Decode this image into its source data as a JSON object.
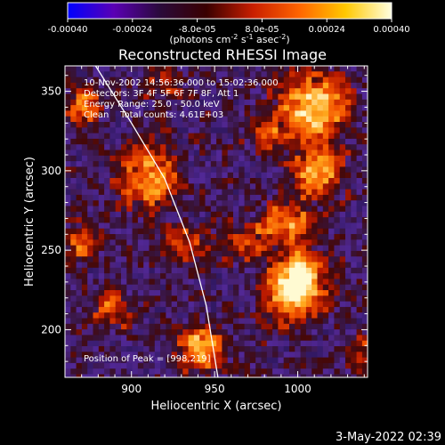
{
  "chart_data": {
    "type": "heatmap",
    "title": "Reconstructed RHESSI Image",
    "xlabel": "Heliocentric X (arcsec)",
    "ylabel": "Heliocentric Y (arcsec)",
    "xlim": [
      860,
      1042
    ],
    "ylim": [
      170,
      366
    ],
    "xticks": [
      900,
      950,
      1000
    ],
    "yticks": [
      200,
      250,
      300,
      350
    ],
    "annotations": [
      "10-Nov-2002 14:56:36.000 to 15:02:36.000",
      "Detectors: 3F 4F 5F 6F 7F 8F, Att 1",
      "Energy Range: 25.0 - 50.0 keV",
      "Clean    Total counts: 4.61E+03"
    ],
    "peak_label": "Position of Peak = [998,219]",
    "peak_position": [
      998,
      219
    ],
    "colorbar": {
      "ticks": [
        "-0.00040",
        "-0.00024",
        "-8.0e-05",
        "8.0e-05",
        "0.00024",
        "0.00040"
      ],
      "values": [
        -0.0004,
        -0.00024,
        -8e-05,
        8e-05,
        0.00024,
        0.0004
      ],
      "range": [
        -0.0004,
        0.0004
      ],
      "unit_main": "(photons cm",
      "unit_sup1": "-2",
      "unit_mid1": " s",
      "unit_sup2": "-1",
      "unit_mid2": " asec",
      "unit_sup3": "-2",
      "unit_end": ")",
      "colors": [
        "#0000ff",
        "#5a00b4",
        "#2a0a3a",
        "#3a0000",
        "#c81e00",
        "#ff6400",
        "#ffc800",
        "#ffffe0"
      ]
    },
    "limb_curve": {
      "color": "#ffffff",
      "points": [
        [
          876,
          370
        ],
        [
          900,
          330
        ],
        [
          920,
          295
        ],
        [
          935,
          255
        ],
        [
          945,
          215
        ],
        [
          952,
          170
        ]
      ]
    },
    "hot_spots": [
      {
        "x": 998,
        "y": 222,
        "s": 12,
        "a": 1.0
      },
      {
        "x": 1002,
        "y": 238,
        "s": 9,
        "a": 0.8
      },
      {
        "x": 995,
        "y": 268,
        "s": 11,
        "a": 0.65
      },
      {
        "x": 1012,
        "y": 300,
        "s": 10,
        "a": 0.85
      },
      {
        "x": 1010,
        "y": 340,
        "s": 14,
        "a": 0.95
      },
      {
        "x": 910,
        "y": 295,
        "s": 13,
        "a": 0.75
      },
      {
        "x": 932,
        "y": 252,
        "s": 9,
        "a": 0.55
      },
      {
        "x": 872,
        "y": 340,
        "s": 8,
        "a": 0.7
      },
      {
        "x": 870,
        "y": 255,
        "s": 8,
        "a": 0.6
      },
      {
        "x": 942,
        "y": 188,
        "s": 10,
        "a": 0.85
      },
      {
        "x": 888,
        "y": 212,
        "s": 9,
        "a": 0.55
      },
      {
        "x": 968,
        "y": 255,
        "s": 10,
        "a": 0.5
      },
      {
        "x": 1040,
        "y": 185,
        "s": 8,
        "a": 0.5
      },
      {
        "x": 982,
        "y": 322,
        "s": 8,
        "a": 0.45
      },
      {
        "x": 920,
        "y": 355,
        "s": 8,
        "a": 0.4
      }
    ]
  },
  "footer": {
    "timestamp": "3-May-2022 02:39"
  }
}
